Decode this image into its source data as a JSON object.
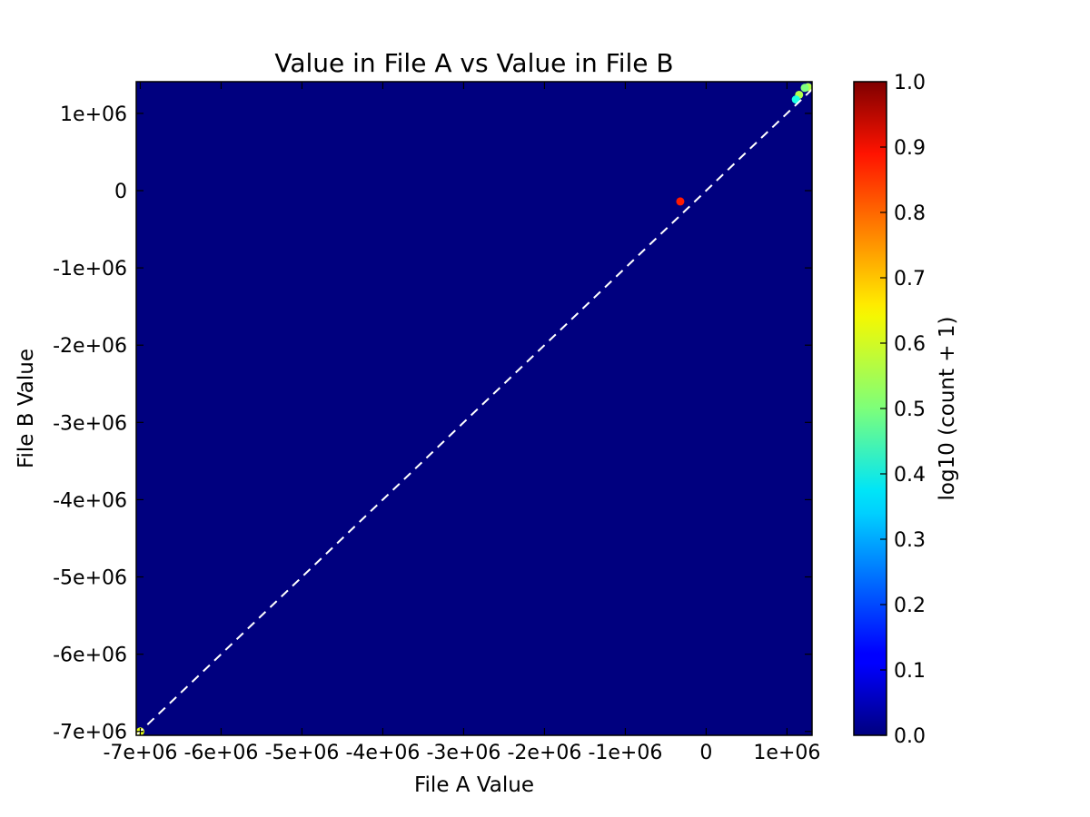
{
  "chart_data": {
    "type": "heatmap",
    "title": "Value in File A vs Value in File B",
    "xlabel": "File A Value",
    "ylabel": "File B Value",
    "xlim": [
      -7050000,
      1310000
    ],
    "ylim": [
      -7050000,
      1410000
    ],
    "x_ticks": [
      {
        "value": -7000000,
        "label": "-7e+06"
      },
      {
        "value": -6000000,
        "label": "-6e+06"
      },
      {
        "value": -5000000,
        "label": "-5e+06"
      },
      {
        "value": -4000000,
        "label": "-4e+06"
      },
      {
        "value": -3000000,
        "label": "-3e+06"
      },
      {
        "value": -2000000,
        "label": "-2e+06"
      },
      {
        "value": -1000000,
        "label": "-1e+06"
      },
      {
        "value": 0,
        "label": "0"
      },
      {
        "value": 1000000,
        "label": "1e+06"
      }
    ],
    "y_ticks": [
      {
        "value": 1000000,
        "label": "1e+06"
      },
      {
        "value": 0,
        "label": "0"
      },
      {
        "value": -1000000,
        "label": "-1e+06"
      },
      {
        "value": -2000000,
        "label": "-2e+06"
      },
      {
        "value": -3000000,
        "label": "-3e+06"
      },
      {
        "value": -4000000,
        "label": "-4e+06"
      },
      {
        "value": -5000000,
        "label": "-5e+06"
      },
      {
        "value": -6000000,
        "label": "-6e+06"
      },
      {
        "value": -7000000,
        "label": "-7e+06"
      }
    ],
    "background_value": 0.0,
    "identity_line": {
      "x": [
        -7050000,
        1310000
      ],
      "y": [
        -7050000,
        1310000
      ],
      "color": "#ffffff",
      "style": "dashed"
    },
    "cells": [
      {
        "x": 1260000,
        "y": 1340000,
        "value": 0.55
      },
      {
        "x": 1220000,
        "y": 1330000,
        "value": 0.5
      },
      {
        "x": 1150000,
        "y": 1240000,
        "value": 0.55
      },
      {
        "x": 1110000,
        "y": 1180000,
        "value": 0.4
      },
      {
        "x": -320000,
        "y": -140000,
        "value": 0.85
      },
      {
        "x": -7000000,
        "y": -7000000,
        "value": 0.6
      }
    ],
    "colorbar": {
      "label": "log10 (count + 1)",
      "range": [
        0.0,
        1.0
      ],
      "colormap": "jet",
      "ticks": [
        {
          "value": 0.0,
          "label": "0.0"
        },
        {
          "value": 0.1,
          "label": "0.1"
        },
        {
          "value": 0.2,
          "label": "0.2"
        },
        {
          "value": 0.3,
          "label": "0.3"
        },
        {
          "value": 0.4,
          "label": "0.4"
        },
        {
          "value": 0.5,
          "label": "0.5"
        },
        {
          "value": 0.6,
          "label": "0.6"
        },
        {
          "value": 0.7,
          "label": "0.7"
        },
        {
          "value": 0.8,
          "label": "0.8"
        },
        {
          "value": 0.9,
          "label": "0.9"
        },
        {
          "value": 1.0,
          "label": "1.0"
        }
      ]
    },
    "grid": false,
    "legend": "none"
  }
}
